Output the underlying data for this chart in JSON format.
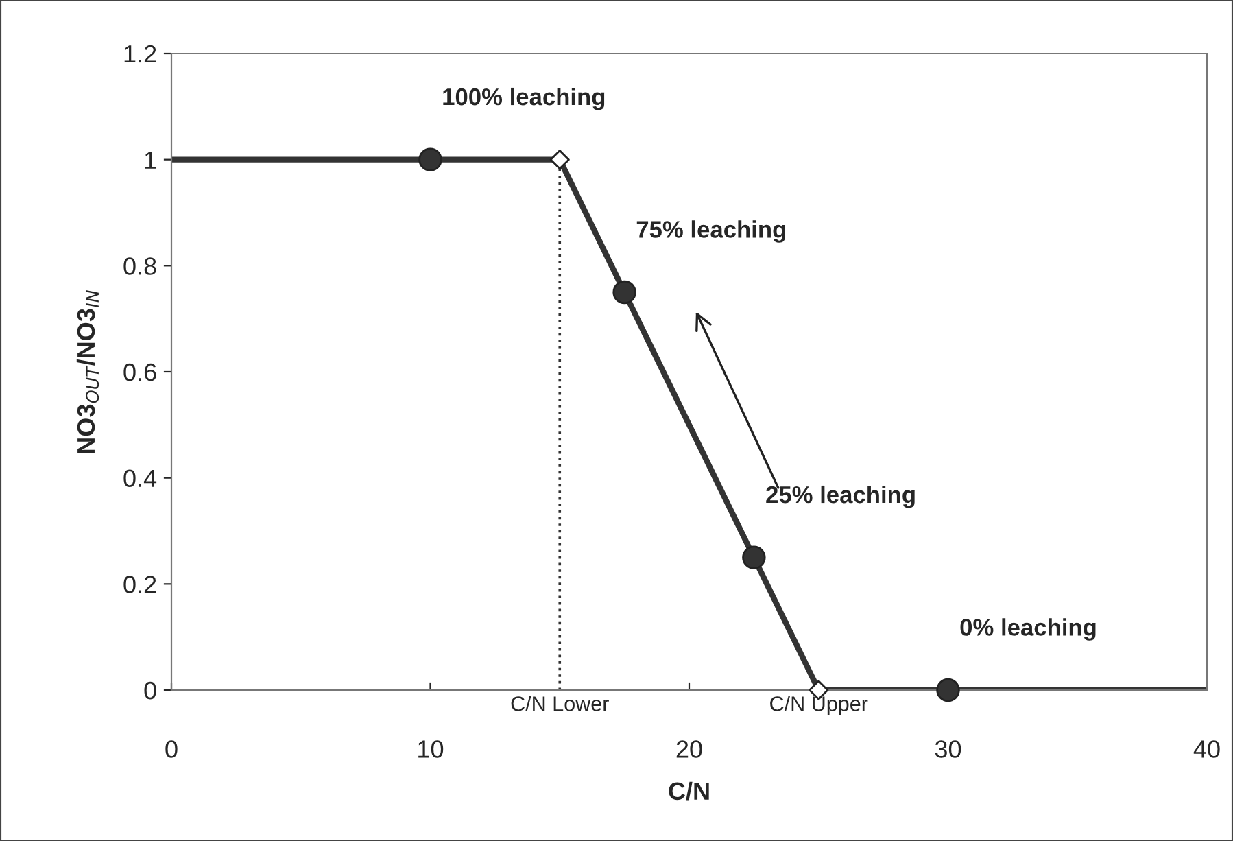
{
  "chart_data": {
    "type": "line",
    "xlabel": "C/N",
    "ylabel": "NO3$_{OUT}$/NO3$_{IN}$",
    "xlim": [
      0,
      40
    ],
    "xticks": [
      0,
      10,
      20,
      30,
      40
    ],
    "ylim": [
      0,
      1.2
    ],
    "yticks": [
      0,
      0.2,
      0.4,
      0.6,
      0.8,
      1,
      1.2
    ],
    "grid": false,
    "legend": false,
    "series": [
      {
        "color": "#333333",
        "x": [
          0,
          15,
          25,
          40
        ],
        "values": [
          1,
          1,
          0,
          0
        ],
        "marker": "none",
        "line_style": "solid"
      },
      {
        "type": "line",
        "color": "#333333",
        "x": [
          15,
          15
        ],
        "values": [
          0,
          1
        ],
        "marker": "none",
        "line_style": "dotted"
      },
      {
        "type": "scatter",
        "color": "#333333",
        "x": [
          10,
          17.5,
          22.5,
          30
        ],
        "values": [
          1,
          0.75,
          0.25,
          0
        ],
        "marker": "circle"
      },
      {
        "type": "scatter",
        "color": "#ffffff",
        "x": [
          15,
          25
        ],
        "values": [
          1,
          0
        ],
        "marker": "diamond"
      }
    ],
    "annotations": [
      {
        "text": "100% leaching",
        "x": 10,
        "y": 1
      },
      {
        "text": "75% leaching",
        "x": 17.5,
        "y": 0.75
      },
      {
        "text": "25% leaching",
        "x": 22.5,
        "y": 0.25
      },
      {
        "text": "0% leaching",
        "x": 30,
        "y": 0
      },
      {
        "text": "C/N Lower",
        "x": 15,
        "y": 0
      },
      {
        "text": "C/N Upper",
        "x": 25,
        "y": 0
      }
    ]
  }
}
